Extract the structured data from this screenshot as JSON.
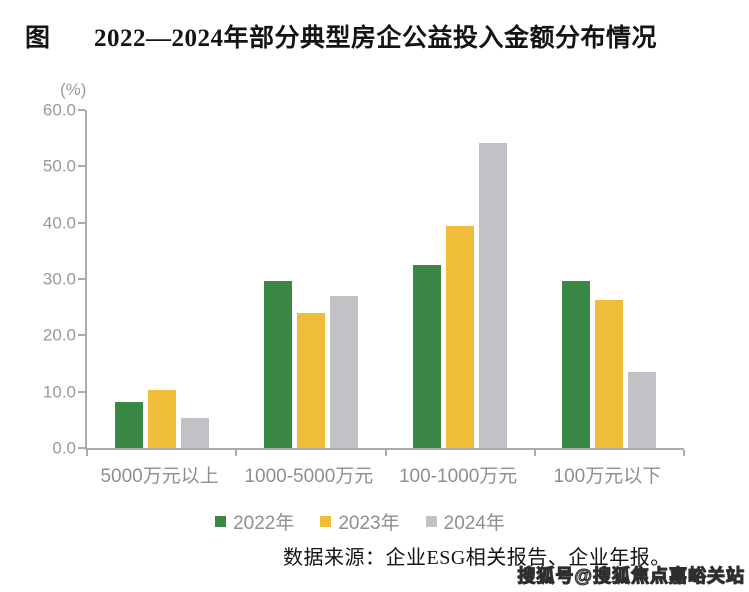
{
  "figure": {
    "label": "图",
    "title": "2022—2024年部分典型房企公益投入金额分布情况"
  },
  "chart_data": {
    "type": "bar",
    "title": "2022—2024年部分典型房企公益投入金额分布情况",
    "unit_label": "(%)",
    "categories": [
      "5000万元以上",
      "1000-5000万元",
      "100-1000万元",
      "100万元以下"
    ],
    "series": [
      {
        "name": "2022年",
        "color": "#3A8743",
        "values": [
          8.2,
          29.6,
          32.5,
          29.7
        ]
      },
      {
        "name": "2023年",
        "color": "#F0BD3B",
        "values": [
          10.3,
          24.0,
          39.4,
          26.3
        ]
      },
      {
        "name": "2024年",
        "color": "#C2C2C6",
        "values": [
          5.4,
          27.0,
          54.1,
          13.5
        ]
      }
    ],
    "ylim": [
      0,
      60
    ],
    "ytick_step": 10,
    "ytick_labels": [
      "0.0",
      "10.0",
      "20.0",
      "30.0",
      "40.0",
      "50.0",
      "60.0"
    ],
    "grid": false,
    "legend_position": "bottom",
    "axis_color": "#ababab",
    "tick_label_color": "#9a9a9a"
  },
  "source_note": "数据来源：企业ESG相关报告、企业年报。",
  "watermark": "搜狐号@搜狐焦点嘉峪关站"
}
